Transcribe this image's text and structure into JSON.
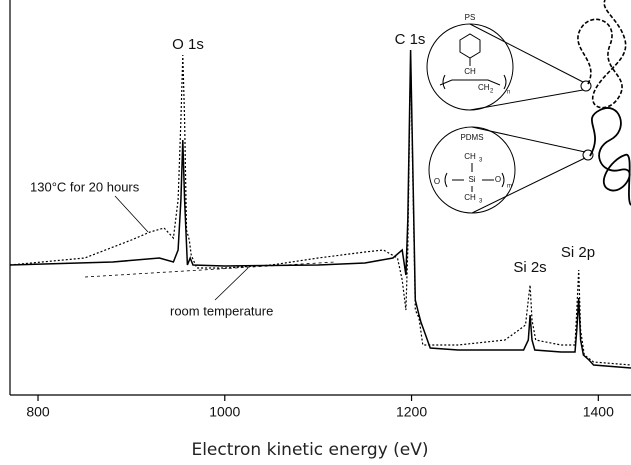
{
  "chart_data": {
    "type": "line",
    "xlabel": "Electron kinetic energy (eV)",
    "xlim": [
      770,
      1435
    ],
    "xticks": [
      800,
      1000,
      1200,
      1400
    ],
    "ylim": [
      0,
      395
    ],
    "peak_labels": [
      "O 1s",
      "C 1s",
      "Si 2s",
      "Si 2p"
    ],
    "series": [
      {
        "name": "room temperature",
        "color": "#000000",
        "line_style": "solid",
        "x": [
          770,
          880,
          930,
          945,
          950,
          953,
          955,
          957,
          960,
          963,
          966,
          1000,
          1100,
          1150,
          1180,
          1190,
          1194,
          1196,
          1199,
          1201,
          1204,
          1208,
          1210,
          1215,
          1220,
          1250,
          1300,
          1320,
          1325,
          1327,
          1329,
          1332,
          1360,
          1375,
          1377,
          1379,
          1381,
          1384,
          1390,
          1395,
          1435
        ],
        "values": [
          130,
          133,
          137,
          133,
          145,
          195,
          255,
          195,
          130,
          137,
          130,
          129,
          130,
          132,
          137,
          145,
          120,
          175,
          345,
          245,
          95,
          80,
          73,
          60,
          47,
          45,
          45,
          45,
          55,
          80,
          55,
          45,
          43,
          43,
          65,
          97,
          55,
          40,
          35,
          30,
          27
        ]
      },
      {
        "name": "130°C for 20 hours",
        "color": "#000000",
        "line_style": "dotted",
        "x": [
          770,
          850,
          900,
          920,
          935,
          945,
          950,
          953,
          955,
          957,
          959,
          962,
          964,
          970,
          1000,
          1050,
          1100,
          1150,
          1170,
          1185,
          1190,
          1194,
          1196,
          1199,
          1201,
          1204,
          1208,
          1212,
          1250,
          1300,
          1315,
          1322,
          1325,
          1327,
          1329,
          1333,
          1360,
          1375,
          1377,
          1379,
          1381,
          1385,
          1395,
          1435
        ],
        "values": [
          130,
          137,
          155,
          163,
          167,
          157,
          195,
          275,
          340,
          275,
          165,
          155,
          140,
          127,
          127,
          130,
          137,
          143,
          145,
          137,
          115,
          85,
          145,
          340,
          235,
          85,
          77,
          50,
          50,
          55,
          65,
          70,
          95,
          110,
          75,
          55,
          50,
          50,
          85,
          125,
          65,
          40,
          33,
          30
        ]
      }
    ],
    "insets": [
      {
        "label": "PS",
        "texts": [
          "CH",
          "CH",
          "2",
          "n"
        ]
      },
      {
        "label": "PDMS",
        "texts": [
          "CH",
          "3",
          "Si",
          "O",
          "O",
          "m",
          "CH",
          "3"
        ]
      }
    ]
  }
}
